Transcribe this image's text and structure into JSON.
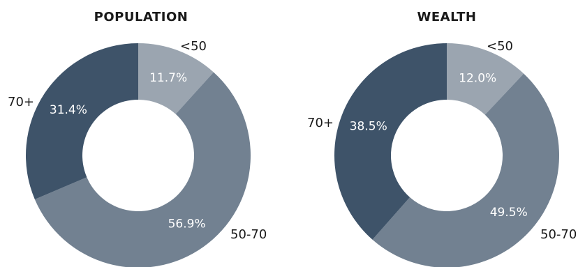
{
  "colors": {
    "lt50": "#9ba5b0",
    "50to70": "#728191",
    "70plus": "#3e5369",
    "background": "#ffffff"
  },
  "chart_data": [
    {
      "type": "pie",
      "variant": "donut",
      "title": "POPULATION",
      "slices": [
        {
          "label": "<50",
          "value": 11.7,
          "display": "11.7%",
          "color_key": "lt50"
        },
        {
          "label": "50-70",
          "value": 56.9,
          "display": "56.9%",
          "color_key": "50to70"
        },
        {
          "label": "70+",
          "value": 31.4,
          "display": "31.4%",
          "color_key": "70plus"
        }
      ]
    },
    {
      "type": "pie",
      "variant": "donut",
      "title": "WEALTH",
      "slices": [
        {
          "label": "<50",
          "value": 12.0,
          "display": "12.0%",
          "color_key": "lt50"
        },
        {
          "label": "50-70",
          "value": 49.5,
          "display": "49.5%",
          "color_key": "50to70"
        },
        {
          "label": "70+",
          "value": 38.5,
          "display": "38.5%",
          "color_key": "70plus"
        }
      ]
    }
  ]
}
